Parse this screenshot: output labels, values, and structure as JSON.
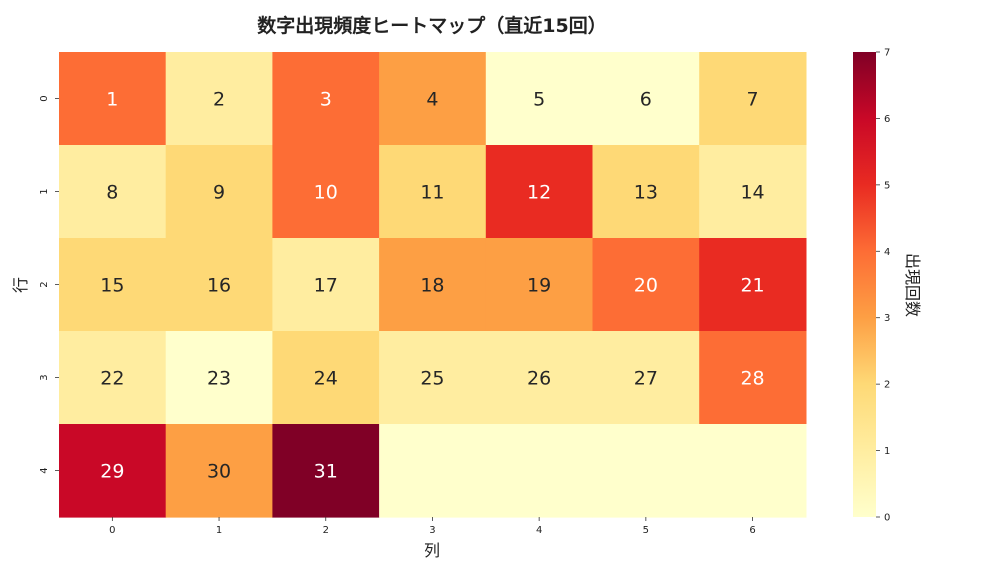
{
  "chart_data": {
    "type": "heatmap",
    "title": "数字出現頻度ヒートマップ（直近15回）",
    "xlabel": "列",
    "ylabel": "行",
    "colorbar_label": "出現回数",
    "x_ticks": [
      "0",
      "1",
      "2",
      "3",
      "4",
      "5",
      "6"
    ],
    "y_ticks": [
      "0",
      "1",
      "2",
      "3",
      "4"
    ],
    "colorbar_ticks": [
      "0",
      "1",
      "2",
      "3",
      "4",
      "5",
      "6",
      "7"
    ],
    "value_range": [
      0,
      7
    ],
    "colormap": "YlOrRd",
    "labels": [
      [
        "1",
        "2",
        "3",
        "4",
        "5",
        "6",
        "7"
      ],
      [
        "8",
        "9",
        "10",
        "11",
        "12",
        "13",
        "14"
      ],
      [
        "15",
        "16",
        "17",
        "18",
        "19",
        "20",
        "21"
      ],
      [
        "22",
        "23",
        "24",
        "25",
        "26",
        "27",
        "28"
      ],
      [
        "29",
        "30",
        "31",
        "",
        "",
        "",
        ""
      ]
    ],
    "values": [
      [
        4,
        1,
        4,
        3,
        0,
        0,
        2
      ],
      [
        1,
        2,
        4,
        2,
        5,
        2,
        1
      ],
      [
        2,
        2,
        1,
        3,
        3,
        4,
        5
      ],
      [
        1,
        0,
        2,
        1,
        1,
        1,
        4
      ],
      [
        6,
        3,
        7,
        0,
        0,
        0,
        0
      ]
    ]
  }
}
